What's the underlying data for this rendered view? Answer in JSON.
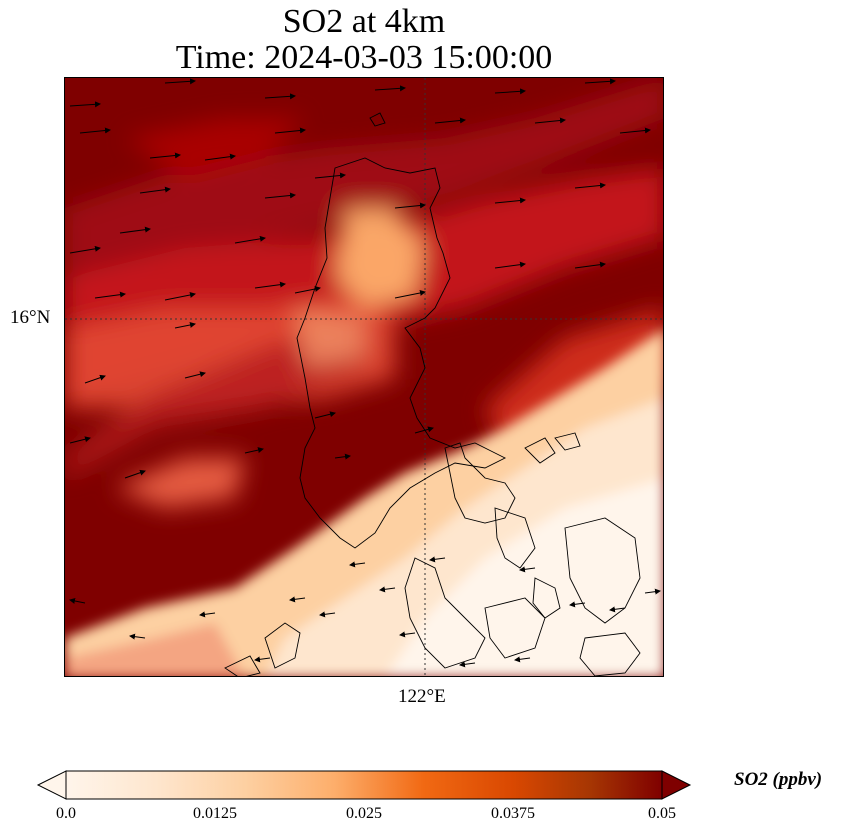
{
  "title": {
    "line1": "SO2 at 4km",
    "line2": "Time: 2024-03-03 15:00:00"
  },
  "map": {
    "lat_label": "16°N",
    "lon_label": "122°E",
    "gridline_style": "dotted",
    "coastline_color": "#000000",
    "wind_vector_color": "#000000"
  },
  "colorbar": {
    "label": "SO2 (ppbv)",
    "ticks": [
      "0.0",
      "0.0125",
      "0.025",
      "0.0375",
      "0.05"
    ],
    "range": [
      0.0,
      0.05
    ],
    "extend": "both",
    "colormap": [
      "#fff5eb",
      "#fee6ce",
      "#fdd0a2",
      "#fdae6b",
      "#f16913",
      "#d94801",
      "#a63603",
      "#7f0000"
    ]
  }
}
